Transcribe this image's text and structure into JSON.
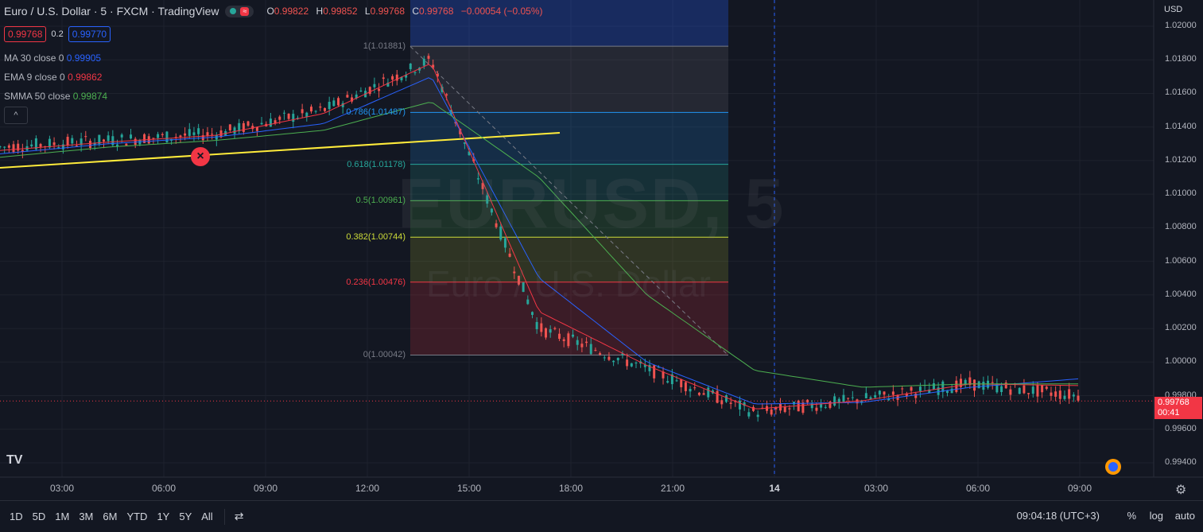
{
  "header": {
    "symbol_title": "Euro / U.S. Dollar · 5 · FXCM · TradingView",
    "ohlc": {
      "o_label": "O",
      "o": "0.99822",
      "h_label": "H",
      "h": "0.99852",
      "l_label": "L",
      "l": "0.99768",
      "c_label": "C",
      "c": "0.99768",
      "change": "−0.00054 (−0.05%)"
    }
  },
  "quote": {
    "bid": "0.99768",
    "spread": "0.2",
    "ask": "0.99770"
  },
  "indicators": [
    {
      "label": "MA 30 close 0",
      "value": "0.99905",
      "color": "#2962ff"
    },
    {
      "label": "EMA 9 close 0",
      "value": "0.99862",
      "color": "#f23645"
    },
    {
      "label": "SMMA 50 close",
      "value": "0.99874",
      "color": "#4caf50"
    }
  ],
  "watermark": {
    "symbol": "EURUSD, 5",
    "name": "Euro / U.S. Dollar"
  },
  "price_axis": {
    "currency": "USD",
    "ticks": [
      "1.02000",
      "1.01800",
      "1.01600",
      "1.01400",
      "1.01200",
      "1.01000",
      "1.00800",
      "1.00600",
      "1.00400",
      "1.00200",
      "1.00000",
      "0.99800",
      "0.99600",
      "0.99400"
    ],
    "last_price": "0.99768",
    "countdown": "00:41",
    "last_color": "#f23645"
  },
  "time_axis": {
    "ticks": [
      "03:00",
      "06:00",
      "09:00",
      "12:00",
      "15:00",
      "18:00",
      "21:00",
      "14",
      "03:00",
      "06:00",
      "09:00"
    ]
  },
  "fib_levels": [
    {
      "label": "1(1.01881)",
      "price": 1.01881,
      "color": "#787b86"
    },
    {
      "label": "0.786(1.01487)",
      "price": 1.01487,
      "color": "#2196f3"
    },
    {
      "label": "0.618(1.01178)",
      "price": 1.01178,
      "color": "#26a69a"
    },
    {
      "label": "0.5(1.00961)",
      "price": 1.00961,
      "color": "#4caf50"
    },
    {
      "label": "0.382(1.00744)",
      "price": 1.00744,
      "color": "#cddc39"
    },
    {
      "label": "0.236(1.00476)",
      "price": 1.00476,
      "color": "#f23645"
    },
    {
      "label": "0(1.00042)",
      "price": 1.00042,
      "color": "#787b86"
    }
  ],
  "bottom_bar": {
    "timeframes": [
      "1D",
      "5D",
      "1M",
      "3M",
      "6M",
      "YTD",
      "1Y",
      "5Y",
      "All"
    ],
    "clock": "09:04:18 (UTC+3)",
    "percent": "%",
    "log": "log",
    "auto": "auto"
  },
  "chart_data": {
    "type": "line",
    "title": "Euro / U.S. Dollar",
    "ylim": [
      0.993,
      1.0205
    ],
    "x": [
      "03:00",
      "06:00",
      "09:00",
      "12:00",
      "15:00",
      "18:00",
      "21:00",
      "14",
      "03:00",
      "06:00",
      "09:00"
    ],
    "series": [
      {
        "name": "EURUSD",
        "values": [
          1.0128,
          1.0132,
          1.0136,
          1.015,
          1.018,
          1.002,
          0.9996,
          0.997,
          0.9978,
          0.9987,
          0.998
        ]
      },
      {
        "name": "MA 30",
        "values": [
          1.0124,
          1.013,
          1.0134,
          1.0142,
          1.017,
          1.005,
          1.0,
          0.9975,
          0.9976,
          0.9985,
          0.999
        ]
      },
      {
        "name": "EMA 9",
        "values": [
          1.0126,
          1.0131,
          1.0135,
          1.0148,
          1.0178,
          1.003,
          0.9998,
          0.9972,
          0.9977,
          0.9987,
          0.9986
        ]
      },
      {
        "name": "SMMA 50",
        "values": [
          1.0122,
          1.0128,
          1.0132,
          1.0138,
          1.0155,
          1.011,
          1.004,
          0.9995,
          0.9985,
          0.9987,
          0.9987
        ]
      }
    ]
  }
}
